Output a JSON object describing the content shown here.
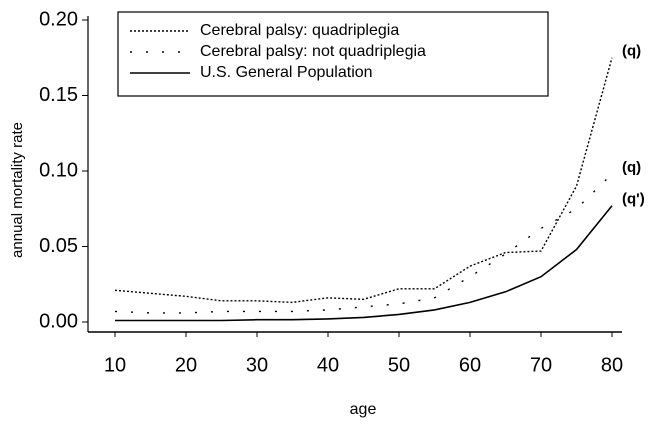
{
  "chart_data": {
    "type": "line",
    "xlabel": "age",
    "ylabel": "annual mortality rate",
    "x": [
      10,
      15,
      20,
      25,
      30,
      35,
      40,
      45,
      50,
      55,
      60,
      65,
      70,
      75,
      80
    ],
    "series": [
      {
        "name": "Cerebral palsy: quadriplegia",
        "color": "#000000",
        "line_style": "dotted",
        "values": [
          0.021,
          0.019,
          0.017,
          0.014,
          0.014,
          0.013,
          0.016,
          0.015,
          0.022,
          0.022,
          0.037,
          0.046,
          0.047,
          0.09,
          0.175
        ]
      },
      {
        "name": "Cerebral palsy: not quadriplegia",
        "color": "#000000",
        "line_style": "loosely dotted",
        "values": [
          0.007,
          0.006,
          0.006,
          0.007,
          0.007,
          0.007,
          0.008,
          0.01,
          0.012,
          0.016,
          0.03,
          0.045,
          0.062,
          0.075,
          0.098
        ]
      },
      {
        "name": "U.S. General Population",
        "color": "#000000",
        "line_style": "solid",
        "values": [
          0.001,
          0.001,
          0.001,
          0.001,
          0.0015,
          0.0015,
          0.002,
          0.003,
          0.005,
          0.008,
          0.013,
          0.02,
          0.03,
          0.048,
          0.077
        ]
      }
    ],
    "annotations": [
      "(q)",
      "(q)",
      "(q')"
    ],
    "xlim": [
      10,
      80
    ],
    "xticks": [
      10,
      20,
      30,
      40,
      50,
      60,
      70,
      80
    ],
    "ylim": [
      0,
      0.2
    ],
    "yticks": [
      {
        "value": 0,
        "label": "0.00"
      },
      {
        "value": 0.05,
        "label": "0.05"
      },
      {
        "value": 0.1,
        "label": "0.10"
      },
      {
        "value": 0.15,
        "label": "0.15"
      },
      {
        "value": 0.2,
        "label": "0.20"
      }
    ],
    "legend": "upper left",
    "grid": false
  }
}
